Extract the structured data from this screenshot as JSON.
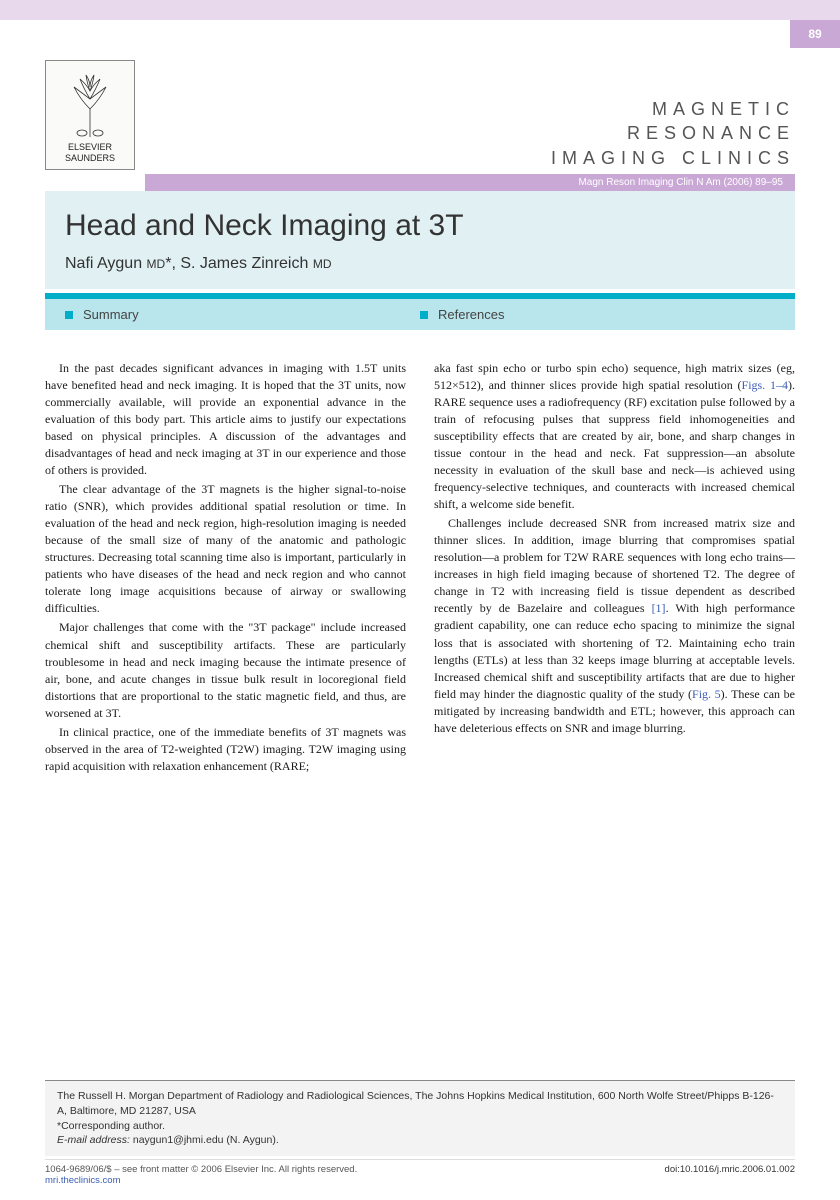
{
  "page_number": "89",
  "publisher": {
    "line1": "ELSEVIER",
    "line2": "SAUNDERS"
  },
  "journal_title_lines": [
    "MAGNETIC",
    "RESONANCE",
    "IMAGING CLINICS"
  ],
  "citation": "Magn Reson Imaging Clin N Am (2006) 89–95",
  "article_title": "Head and Neck Imaging at 3T",
  "authors_html": "Nafi Aygun <span class='degree'>MD</span>*, S. James Zinreich <span class='degree'>MD</span>",
  "sections": {
    "left": "Summary",
    "right": "References"
  },
  "body": {
    "left_paragraphs": [
      "In the past decades significant advances in imaging with 1.5T units have benefited head and neck imaging. It is hoped that the 3T units, now commercially available, will provide an exponential advance in the evaluation of this body part. This article aims to justify our expectations based on physical principles. A discussion of the advantages and disadvantages of head and neck imaging at 3T in our experience and those of others is provided.",
      "The clear advantage of the 3T magnets is the higher signal-to-noise ratio (SNR), which provides additional spatial resolution or time. In evaluation of the head and neck region, high-resolution imaging is needed because of the small size of many of the anatomic and pathologic structures. Decreasing total scanning time also is important, particularly in patients who have diseases of the head and neck region and who cannot tolerate long image acquisitions because of airway or swallowing difficulties.",
      "Major challenges that come with the \"3T package\" include increased chemical shift and susceptibility artifacts. These are particularly troublesome in head and neck imaging because the intimate presence of air, bone, and acute changes in tissue bulk result in locoregional field distortions that are proportional to the static magnetic field, and thus, are worsened at 3T.",
      "In clinical practice, one of the immediate benefits of 3T magnets was observed in the area of T2-weighted (T2W) imaging. T2W imaging using rapid acquisition with relaxation enhancement (RARE;"
    ],
    "right_paragraphs": [
      "aka fast spin echo or turbo spin echo) sequence, high matrix sizes (eg, 512×512), and thinner slices provide high spatial resolution (<span class='fig-link'>Figs. 1–4</span>). RARE sequence uses a radiofrequency (RF) excitation pulse followed by a train of refocusing pulses that suppress field inhomogeneities and susceptibility effects that are created by air, bone, and sharp changes in tissue contour in the head and neck. Fat suppression—an absolute necessity in evaluation of the skull base and neck—is achieved using frequency-selective techniques, and counteracts with increased chemical shift, a welcome side benefit.",
      "Challenges include decreased SNR from increased matrix size and thinner slices. In addition, image blurring that compromises spatial resolution—a problem for T2W RARE sequences with long echo trains—increases in high field imaging because of shortened T2. The degree of change in T2 with increasing field is tissue dependent as described recently by de Bazelaire and colleagues <span class='ref-link'>[1]</span>. With high performance gradient capability, one can reduce echo spacing to minimize the signal loss that is associated with shortening of T2. Maintaining echo train lengths (ETLs) at less than 32 keeps image blurring at acceptable levels. Increased chemical shift and susceptibility artifacts that are due to higher field may hinder the diagnostic quality of the study (<span class='fig-link'>Fig. 5</span>). These can be mitigated by increasing bandwidth and ETL; however, this approach can have deleterious effects on SNR and image blurring."
    ]
  },
  "affiliation": {
    "text": "The Russell H. Morgan Department of Radiology and Radiological Sciences, The Johns Hopkins Medical Institution, 600 North Wolfe Street/Phipps B-126-A, Baltimore, MD 21287, USA",
    "corresponding": "*Corresponding author.",
    "email_label": "E-mail address:",
    "email": "naygun1@jhmi.edu (N. Aygun)."
  },
  "copyright": {
    "left": "1064-9689/06/$ – see front matter © 2006 Elsevier Inc. All rights reserved.",
    "website": "mri.theclinics.com",
    "doi": "doi:10.1016/j.mric.2006.01.002"
  },
  "colors": {
    "header_light_purple": "#e8d9ed",
    "purple": "#c9a8d6",
    "title_bg": "#e0f0f3",
    "section_bg": "#b9e5ec",
    "teal": "#00aec7",
    "link": "#3a5cb5",
    "footer_bg": "#f3f3f3"
  }
}
